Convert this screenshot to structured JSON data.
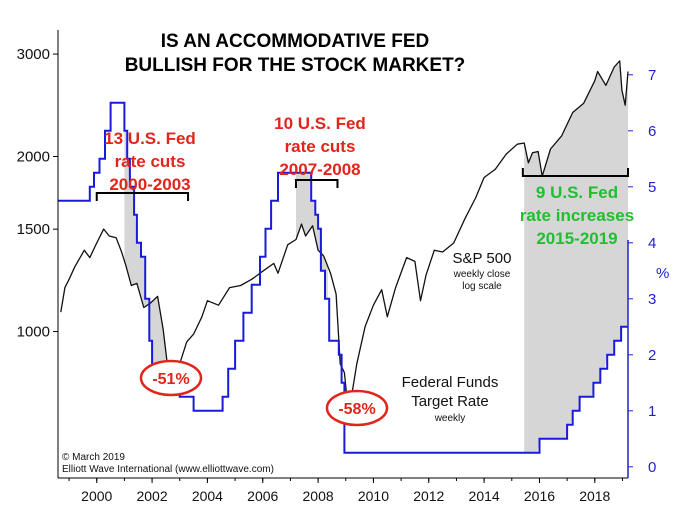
{
  "chart_data": {
    "type": "line",
    "title": [
      "IS AN ACCOMMODATIVE FED",
      "BULLISH FOR THE STOCK MARKET?"
    ],
    "x_range": [
      1998.6,
      2019.2
    ],
    "x_ticks": [
      "2000",
      "2002",
      "2004",
      "2006",
      "2008",
      "2010",
      "2012",
      "2014",
      "2016",
      "2018"
    ],
    "left_axis": {
      "scale": "log",
      "range": [
        560,
        3300
      ],
      "ticks": [
        1000,
        1500,
        2000,
        3000
      ]
    },
    "right_axis": {
      "unit": "%",
      "range": [
        -0.2,
        7.8
      ],
      "ticks": [
        0,
        1,
        2,
        3,
        4,
        5,
        6,
        7
      ]
    },
    "series": [
      {
        "name": "S&P 500",
        "subtitle": [
          "weekly close",
          "log scale"
        ],
        "axis": "left",
        "color": "#111111",
        "x": [
          1998.7,
          1998.85,
          1999.0,
          1999.2,
          1999.4,
          1999.55,
          1999.75,
          2000.0,
          2000.25,
          2000.45,
          2000.7,
          2000.9,
          2001.05,
          2001.25,
          2001.45,
          2001.7,
          2001.95,
          2002.2,
          2002.4,
          2002.55,
          2002.8,
          2003.0,
          2003.25,
          2003.5,
          2003.8,
          2004.0,
          2004.4,
          2004.8,
          2005.2,
          2005.6,
          2006.0,
          2006.4,
          2006.55,
          2006.9,
          2007.2,
          2007.4,
          2007.55,
          2007.8,
          2008.0,
          2008.2,
          2008.45,
          2008.65,
          2008.8,
          2008.95,
          2009.05,
          2009.2,
          2009.4,
          2009.7,
          2010.0,
          2010.3,
          2010.5,
          2010.8,
          2011.2,
          2011.5,
          2011.7,
          2011.9,
          2012.2,
          2012.5,
          2012.9,
          2013.3,
          2013.7,
          2014.0,
          2014.4,
          2014.8,
          2015.2,
          2015.45,
          2015.6,
          2015.75,
          2015.95,
          2016.1,
          2016.4,
          2016.8,
          2017.2,
          2017.6,
          2018.0,
          2018.1,
          2018.4,
          2018.7,
          2018.9,
          2018.98,
          2019.1,
          2019.2
        ],
        "y": [
          1080,
          1190,
          1230,
          1290,
          1340,
          1380,
          1340,
          1420,
          1500,
          1460,
          1450,
          1370,
          1300,
          1200,
          1210,
          1100,
          1120,
          1150,
          1010,
          880,
          850,
          880,
          960,
          990,
          1060,
          1130,
          1110,
          1190,
          1200,
          1230,
          1270,
          1310,
          1260,
          1410,
          1440,
          1530,
          1460,
          1520,
          1380,
          1350,
          1260,
          1160,
          880,
          850,
          760,
          770,
          880,
          1020,
          1110,
          1180,
          1060,
          1190,
          1340,
          1320,
          1130,
          1250,
          1380,
          1370,
          1420,
          1560,
          1700,
          1840,
          1900,
          2020,
          2100,
          2110,
          1950,
          2030,
          2040,
          1850,
          2060,
          2170,
          2380,
          2470,
          2700,
          2800,
          2650,
          2850,
          2920,
          2600,
          2450,
          2800
        ]
      },
      {
        "name": "Federal Funds Target Rate",
        "subtitle": [
          "weekly"
        ],
        "axis": "right",
        "color": "#1a1adb",
        "x": [
          1998.6,
          1999.5,
          1999.75,
          1999.9,
          2000.1,
          2000.3,
          2000.5,
          2000.9,
          2001.0,
          2001.1,
          2001.2,
          2001.35,
          2001.45,
          2001.6,
          2001.75,
          2001.9,
          2002.0,
          2002.85,
          2003.0,
          2003.5,
          2004.45,
          2004.55,
          2004.75,
          2005.0,
          2005.3,
          2005.6,
          2005.9,
          2006.1,
          2006.3,
          2006.55,
          2007.7,
          2007.75,
          2007.9,
          2008.0,
          2008.1,
          2008.25,
          2008.4,
          2008.75,
          2008.85,
          2008.95,
          2015.95,
          2016.0,
          2016.95,
          2017.0,
          2017.2,
          2017.45,
          2017.95,
          2018.2,
          2018.45,
          2018.7,
          2018.95,
          2019.2
        ],
        "y": [
          4.75,
          4.75,
          5.0,
          5.25,
          5.5,
          6.0,
          6.5,
          6.5,
          6.0,
          5.5,
          5.0,
          4.5,
          4.0,
          3.75,
          3.0,
          2.25,
          1.75,
          1.75,
          1.25,
          1.0,
          1.0,
          1.25,
          1.75,
          2.25,
          2.75,
          3.25,
          3.75,
          4.25,
          4.75,
          5.25,
          5.25,
          4.75,
          4.5,
          4.25,
          3.5,
          3.0,
          2.25,
          2.0,
          1.5,
          0.25,
          0.25,
          0.5,
          0.5,
          0.75,
          1.0,
          1.25,
          1.5,
          1.75,
          2.0,
          2.25,
          2.5,
          2.5
        ]
      }
    ],
    "shaded_periods": [
      {
        "start": 2001.0,
        "end": 2003.0
      },
      {
        "start": 2007.2,
        "end": 2008.35
      },
      {
        "start": 2015.45,
        "end": 2019.2
      }
    ],
    "annotations": {
      "cuts_2000": {
        "lines": [
          "13 U.S. Fed",
          "rate cuts",
          "2000-2003"
        ],
        "bracket": [
          2000.0,
          2003.3
        ]
      },
      "cuts_2007": {
        "lines": [
          "10 U.S. Fed",
          "rate cuts",
          "2007-2008"
        ],
        "bracket": [
          2007.2,
          2008.7
        ]
      },
      "hikes_2015": {
        "lines": [
          "9 U.S. Fed",
          "rate increases",
          "2015-2019"
        ],
        "bracket": [
          2015.4,
          2019.2
        ]
      },
      "drop_1": "-51%",
      "drop_2": "-58%"
    },
    "credits": [
      "© March 2019",
      "Elliott Wave International (www.elliottwave.com)"
    ]
  }
}
